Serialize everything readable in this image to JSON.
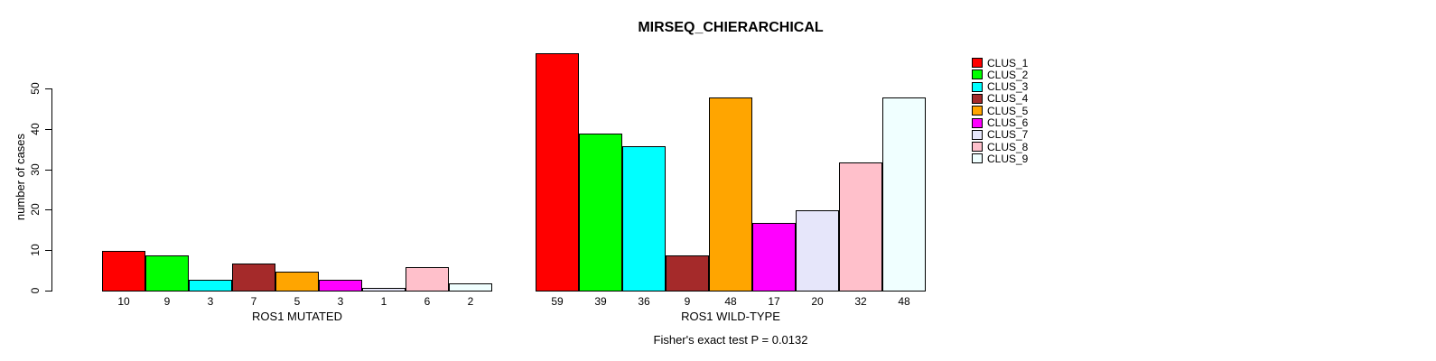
{
  "chart_data": {
    "type": "bar",
    "title": "MIRSEQ_CHIERARCHICAL",
    "ylabel": "number of cases",
    "yticks": [
      0,
      10,
      20,
      30,
      40,
      50
    ],
    "ylim": [
      0,
      59
    ],
    "grid": false,
    "legend_position": "topright",
    "categories_note": "two grouped barplots sharing one y axis",
    "groups": [
      {
        "label": "ROS1 MUTATED",
        "values": [
          10,
          9,
          3,
          7,
          5,
          3,
          1,
          6,
          2
        ]
      },
      {
        "label": "ROS1 WILD-TYPE",
        "values": [
          59,
          39,
          36,
          9,
          48,
          17,
          20,
          32,
          48
        ]
      }
    ],
    "series_colors": [
      "#FF0000",
      "#00FF00",
      "#00FFFF",
      "#A52A2A",
      "#FFA500",
      "#FF00FF",
      "#E6E6FA",
      "#FFC0CB",
      "#F0FFFF"
    ],
    "legend": [
      "CLUS_1",
      "CLUS_2",
      "CLUS_3",
      "CLUS_4",
      "CLUS_5",
      "CLUS_6",
      "CLUS_7",
      "CLUS_8",
      "CLUS_9"
    ],
    "caption": "Fisher's exact test P = 0.0132"
  }
}
